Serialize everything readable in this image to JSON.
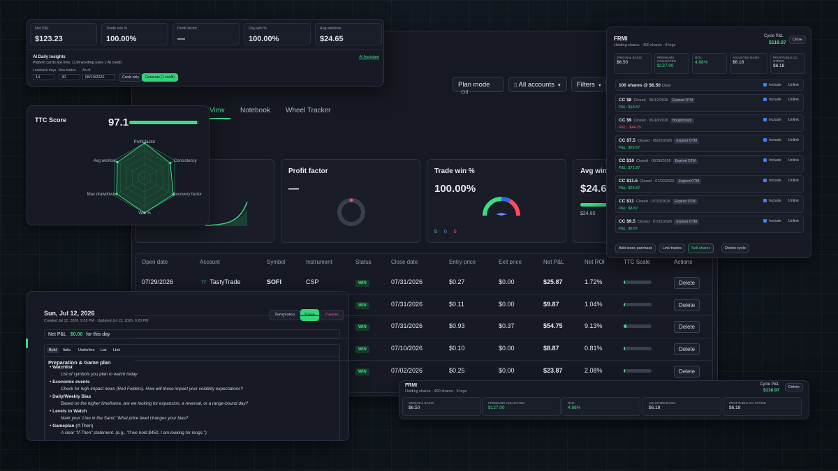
{
  "stats": [
    {
      "label": "Net P&L",
      "value": "$123.23"
    },
    {
      "label": "Trade win %",
      "value": "100.00%"
    },
    {
      "label": "Profit factor",
      "value": "—"
    },
    {
      "label": "Day win %",
      "value": "100.00%"
    },
    {
      "label": "Avg win/loss",
      "value": "$24.65"
    }
  ],
  "insights": {
    "title": "AI Daily Insights",
    "subtitle": "Pattern cards are free; LLM wording uses 1 AI credit.",
    "link": "AI Assistant",
    "lookback_label": "Lookback days",
    "max_trades_label": "Max trades",
    "as_of_label": "As of",
    "lookback": "14",
    "max_trades": "40",
    "as_of": "08/19/2026",
    "cards_only": "Cards only",
    "generate": "Generate (1 credit)"
  },
  "toolbar": {
    "plan_mode": "Plan mode",
    "plan_state": "Off",
    "accounts": "All accounts",
    "filters": "Filters"
  },
  "tabs": [
    "View",
    "Notebook",
    "Wheel Tracker"
  ],
  "ttc": {
    "title": "TTC Score",
    "score": "97.1",
    "score_pct": 97.1,
    "axes": [
      "Profit factor",
      "Consistency",
      "Recovery factor",
      "Win %",
      "Max drawdown",
      "Avg win/loss"
    ]
  },
  "cards": {
    "profit_factor": {
      "title": "Profit factor",
      "value": "—"
    },
    "trade_win": {
      "title": "Trade win %",
      "value": "100.00%",
      "counts": [
        "5",
        "0",
        "0"
      ]
    },
    "avg_win": {
      "title": "Avg win/l",
      "value": "$24.6",
      "sub": "$24.65"
    }
  },
  "table": {
    "headers": [
      "Open date",
      "Account",
      "Symbol",
      "Instrument",
      "Status",
      "Close date",
      "Entry price",
      "Exit price",
      "Net P&L",
      "Net ROI",
      "TTC Scale",
      "Actions"
    ],
    "first_row": {
      "open": "07/29/2026",
      "account": "TastyTrade",
      "symbol": "SOFI",
      "instrument": "CSP"
    },
    "rows": [
      {
        "status": "WIN",
        "close": "07/31/2026",
        "entry": "$0.27",
        "exit": "$0.00",
        "pnl": "$25.87",
        "roi": "1.72%",
        "scale": 0.0
      },
      {
        "status": "WIN",
        "close": "07/31/2026",
        "entry": "$0.11",
        "exit": "$0.00",
        "pnl": "$9.87",
        "roi": "1.04%",
        "scale": 0.0
      },
      {
        "status": "WIN",
        "close": "07/31/2026",
        "entry": "$0.93",
        "exit": "$0.37",
        "pnl": "$54.75",
        "roi": "9.13%",
        "scale": 0.1
      },
      {
        "status": "WIN",
        "close": "07/10/2026",
        "entry": "$0.10",
        "exit": "$0.00",
        "pnl": "$8.87",
        "roi": "0.81%",
        "scale": 0.0
      },
      {
        "status": "WIN",
        "close": "07/02/2026",
        "entry": "$0.25",
        "exit": "$0.00",
        "pnl": "$23.87",
        "roi": "2.08%",
        "scale": 0.0
      }
    ],
    "delete": "Delete"
  },
  "wheel": {
    "symbol": "FRMI",
    "sub": "Holding shares · 400 shares · 8 legs",
    "cycle_label": "Cycle P&L",
    "cycle_value": "$118.97",
    "close": "Close",
    "metrics": [
      {
        "label": "ORIGINAL BASIS",
        "value": "$6.50"
      },
      {
        "label": "PREMIUMS COLLECTED",
        "value": "$127.00"
      },
      {
        "label": "ROC",
        "value": "4.88%"
      },
      {
        "label": "ADJUSTED BASIS",
        "value": "$6.18"
      },
      {
        "label": "PROFITABLE CC STRIKE",
        "value": "$6.18"
      }
    ],
    "stock": {
      "text": "100 shares @ $6.50",
      "state": "Open"
    },
    "legs": [
      {
        "name": "CC $8",
        "status": "Closed · 06/12/2026",
        "tag": "Expired OTM",
        "pnl": "P&L: $18.87"
      },
      {
        "name": "CC $9",
        "status": "Closed · 06/18/2026",
        "tag": "Bought back",
        "pnl": "P&L: -$44.25"
      },
      {
        "name": "CC $7.5",
        "status": "Closed · 05/22/2026",
        "tag": "Expired OTM",
        "pnl": "P&L: $29.87"
      },
      {
        "name": "CC $10",
        "status": "Closed · 06/26/2026",
        "tag": "Expired OTM",
        "pnl": "P&L: $71.87"
      },
      {
        "name": "CC $11.5",
        "status": "Closed · 07/02/2026",
        "tag": "Expired OTM",
        "pnl": "P&L: $23.87"
      },
      {
        "name": "CC $11",
        "status": "Closed · 07/10/2026",
        "tag": "Expired OTM",
        "pnl": "P&L: $8.87"
      },
      {
        "name": "CC $9.5",
        "status": "Closed · 07/31/2026",
        "tag": "Expired OTM",
        "pnl": "P&L: $9.87"
      }
    ],
    "include": "Include",
    "unlink": "Unlink",
    "footer": [
      "Add stock purchase",
      "Link trades",
      "Sell shares",
      "Delete cycle"
    ]
  },
  "wheel_small": {
    "symbol": "FRMI",
    "sub": "Holding shares · 400 shares · 8 legs",
    "cycle_label": "Cycle P&L",
    "cycle_value": "$118.97",
    "delete": "Delete",
    "metrics": [
      {
        "label": "ORIGINAL BASIS",
        "value": "$6.50"
      },
      {
        "label": "PREMIUMS COLLECTED",
        "value": "$127.00"
      },
      {
        "label": "ROC",
        "value": "4.88%"
      },
      {
        "label": "ADJUSTED BASIS",
        "value": "$6.18"
      },
      {
        "label": "PROFITABLE CC STRIKE",
        "value": "$6.18"
      }
    ]
  },
  "notebook": {
    "date": "Sun, Jul 12, 2026",
    "meta": "Created Jul 12, 2026, 9:20 PM · Updated Jul 13, 2026, 6:20 PM",
    "templates": "Templates",
    "save": "Save",
    "delete": "Delete",
    "pnl_label": "Net P&L",
    "pnl_value": "$0.00",
    "pnl_suffix": "for this day",
    "toolbar": [
      "Bold",
      "Italic",
      "Underline",
      "List",
      "Link"
    ],
    "heading": "Preparation & Game plan",
    "items": [
      {
        "title": "Watchlist",
        "sub": "List of symbols you plan to watch today"
      },
      {
        "title": "Economic events",
        "sub": "Check for high-impact news (Red Folders). How will these impact your volatility expectations?"
      },
      {
        "title": "Daily/Weekly Bias",
        "sub": "Based on the higher timeframe, are we looking for expansion, a reversal, or a range-bound day?"
      },
      {
        "title": "Levels to Watch",
        "sub": "Mark your 'Line in the Sand.' What price level changes your bias?"
      },
      {
        "title": "Gameplan",
        "title_suffix": " (If-Then)",
        "sub": "A clear \"If-Then\" statement. (e.g., \"If we hold $450, I am looking for longs.\")"
      }
    ]
  }
}
